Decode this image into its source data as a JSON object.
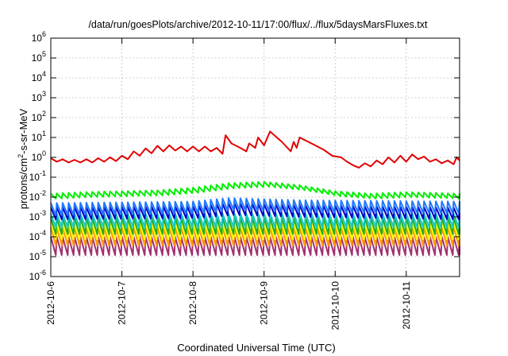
{
  "chart_data": {
    "type": "line",
    "title": "/data/run/goesPlots/archive/2012-10-11/17:00/flux/../flux/5daysMarsFluxes.txt",
    "xlabel": "Coordinated Universal Time (UTC)",
    "ylabel": "protons/cm²-s-sr-MeV",
    "ylabel_parts": {
      "pre": "protons/cm",
      "sup": "2",
      "post": "-s-sr-MeV"
    },
    "x_scale": "time",
    "y_scale": "log",
    "xlim": [
      "2012-10-06T00:00",
      "2012-10-11T18:00"
    ],
    "ylim": [
      1e-06,
      1000000.0
    ],
    "grid": true,
    "x_ticks": [
      "2012-10-6",
      "2012-10-7",
      "2012-10-8",
      "2012-10-9",
      "2012-10-10",
      "2012-10-11"
    ],
    "y_ticks": [
      {
        "base": "10",
        "exp": "-6",
        "value": 1e-06
      },
      {
        "base": "10",
        "exp": "-5",
        "value": 1e-05
      },
      {
        "base": "10",
        "exp": "-4",
        "value": 0.0001
      },
      {
        "base": "10",
        "exp": "-3",
        "value": 0.001
      },
      {
        "base": "10",
        "exp": "-2",
        "value": 0.01
      },
      {
        "base": "10",
        "exp": "-1",
        "value": 0.1
      },
      {
        "base": "10",
        "exp": "0",
        "value": 1
      },
      {
        "base": "10",
        "exp": "1",
        "value": 10
      },
      {
        "base": "10",
        "exp": "2",
        "value": 100
      },
      {
        "base": "10",
        "exp": "3",
        "value": 1000
      },
      {
        "base": "10",
        "exp": "4",
        "value": 10000
      },
      {
        "base": "10",
        "exp": "5",
        "value": 100000
      },
      {
        "base": "10",
        "exp": "6",
        "value": 1000000
      }
    ],
    "series": [
      {
        "color": "#e00000",
        "points": [
          [
            "2012-10-06T00:00",
            0.9
          ],
          [
            "2012-10-06T02:00",
            0.6
          ],
          [
            "2012-10-06T04:00",
            0.8
          ],
          [
            "2012-10-06T06:00",
            0.55
          ],
          [
            "2012-10-06T08:00",
            0.75
          ],
          [
            "2012-10-06T10:00",
            0.55
          ],
          [
            "2012-10-06T12:00",
            0.8
          ],
          [
            "2012-10-06T14:00",
            0.55
          ],
          [
            "2012-10-06T16:00",
            0.9
          ],
          [
            "2012-10-06T18:00",
            0.6
          ],
          [
            "2012-10-06T20:00",
            1.0
          ],
          [
            "2012-10-06T22:00",
            0.65
          ],
          [
            "2012-10-07T00:00",
            1.2
          ],
          [
            "2012-10-07T02:00",
            0.8
          ],
          [
            "2012-10-07T04:00",
            2.0
          ],
          [
            "2012-10-07T06:00",
            1.2
          ],
          [
            "2012-10-07T08:00",
            2.8
          ],
          [
            "2012-10-07T10:00",
            1.6
          ],
          [
            "2012-10-07T12:00",
            3.8
          ],
          [
            "2012-10-07T14:00",
            2.0
          ],
          [
            "2012-10-07T16:00",
            4.0
          ],
          [
            "2012-10-07T18:00",
            2.2
          ],
          [
            "2012-10-07T20:00",
            3.5
          ],
          [
            "2012-10-07T22:00",
            2.0
          ],
          [
            "2012-10-08T00:00",
            3.5
          ],
          [
            "2012-10-08T02:00",
            2.0
          ],
          [
            "2012-10-08T04:00",
            3.5
          ],
          [
            "2012-10-08T06:00",
            2.0
          ],
          [
            "2012-10-08T08:00",
            3.0
          ],
          [
            "2012-10-08T10:00",
            1.5
          ],
          [
            "2012-10-08T11:00",
            13.0
          ],
          [
            "2012-10-08T13:00",
            5.0
          ],
          [
            "2012-10-08T16:00",
            3.0
          ],
          [
            "2012-10-08T18:00",
            2.0
          ],
          [
            "2012-10-08T19:00",
            5.0
          ],
          [
            "2012-10-08T21:00",
            3.0
          ],
          [
            "2012-10-08T22:00",
            10.0
          ],
          [
            "2012-10-09T00:00",
            4.0
          ],
          [
            "2012-10-09T02:00",
            20.0
          ],
          [
            "2012-10-09T06:00",
            6.0
          ],
          [
            "2012-10-09T09:00",
            2.0
          ],
          [
            "2012-10-09T10:00",
            6.0
          ],
          [
            "2012-10-09T11:00",
            3.0
          ],
          [
            "2012-10-09T12:00",
            10.0
          ],
          [
            "2012-10-09T16:00",
            5.0
          ],
          [
            "2012-10-09T20:00",
            2.5
          ],
          [
            "2012-10-09T23:00",
            1.2
          ],
          [
            "2012-10-10T02:00",
            1.0
          ],
          [
            "2012-10-10T04:00",
            0.6
          ],
          [
            "2012-10-10T06:00",
            0.4
          ],
          [
            "2012-10-10T08:00",
            0.3
          ],
          [
            "2012-10-10T10:00",
            0.5
          ],
          [
            "2012-10-10T12:00",
            0.35
          ],
          [
            "2012-10-10T14:00",
            0.7
          ],
          [
            "2012-10-10T16:00",
            0.45
          ],
          [
            "2012-10-10T18:00",
            1.0
          ],
          [
            "2012-10-10T20:00",
            0.55
          ],
          [
            "2012-10-10T22:00",
            1.2
          ],
          [
            "2012-10-11T00:00",
            0.6
          ],
          [
            "2012-10-11T02:00",
            1.4
          ],
          [
            "2012-10-11T04:00",
            0.8
          ],
          [
            "2012-10-11T06:00",
            1.1
          ],
          [
            "2012-10-11T08:00",
            0.6
          ],
          [
            "2012-10-11T10:00",
            0.8
          ],
          [
            "2012-10-11T12:00",
            0.5
          ],
          [
            "2012-10-11T14:00",
            0.7
          ],
          [
            "2012-10-11T16:00",
            0.45
          ],
          [
            "2012-10-11T17:00",
            1.0
          ],
          [
            "2012-10-11T18:00",
            0.7
          ]
        ]
      },
      {
        "color": "#00ee00",
        "period_hours": 2,
        "segments": [
          [
            "2012-10-06T00:00",
            0.015
          ],
          [
            "2012-10-06T12:00",
            0.018
          ],
          [
            "2012-10-07T00:00",
            0.02
          ],
          [
            "2012-10-07T12:00",
            0.022
          ],
          [
            "2012-10-08T00:00",
            0.03
          ],
          [
            "2012-10-08T12:00",
            0.05
          ],
          [
            "2012-10-09T00:00",
            0.06
          ],
          [
            "2012-10-09T12:00",
            0.04
          ],
          [
            "2012-10-10T00:00",
            0.02
          ],
          [
            "2012-10-10T12:00",
            0.015
          ],
          [
            "2012-10-11T00:00",
            0.018
          ],
          [
            "2012-10-11T18:00",
            0.015
          ]
        ],
        "trough_ratio": 0.55
      },
      {
        "color": "#1e78ff",
        "period_hours": 2,
        "segments": [
          [
            "2012-10-06T00:00",
            0.005
          ],
          [
            "2012-10-08T00:00",
            0.006
          ],
          [
            "2012-10-08T12:00",
            0.009
          ],
          [
            "2012-10-09T12:00",
            0.007
          ],
          [
            "2012-10-11T18:00",
            0.006
          ]
        ],
        "trough_ratio": 0.25
      },
      {
        "color": "#0000c8",
        "period_hours": 2,
        "segments": [
          [
            "2012-10-06T00:00",
            0.003
          ],
          [
            "2012-10-08T00:00",
            0.0035
          ],
          [
            "2012-10-08T12:00",
            0.005
          ],
          [
            "2012-10-09T12:00",
            0.004
          ],
          [
            "2012-10-11T18:00",
            0.003
          ]
        ],
        "trough_ratio": 0.25
      },
      {
        "color": "#18c8c8",
        "period_hours": 2,
        "segments": [
          [
            "2012-10-06T00:00",
            0.0015
          ],
          [
            "2012-10-11T18:00",
            0.0015
          ]
        ],
        "trough_ratio": 0.2
      },
      {
        "color": "#22aa22",
        "period_hours": 2,
        "segments": [
          [
            "2012-10-06T00:00",
            0.0009
          ],
          [
            "2012-10-11T18:00",
            0.0009
          ]
        ],
        "trough_ratio": 0.15
      },
      {
        "color": "#ffff00",
        "period_hours": 2,
        "segments": [
          [
            "2012-10-06T00:00",
            0.0005
          ],
          [
            "2012-10-11T18:00",
            0.0005
          ]
        ],
        "trough_ratio": 0.15
      },
      {
        "color": "#ff9900",
        "period_hours": 2,
        "segments": [
          [
            "2012-10-06T00:00",
            0.0003
          ],
          [
            "2012-10-11T18:00",
            0.0003
          ]
        ],
        "trough_ratio": 0.12
      },
      {
        "color": "#a03070",
        "period_hours": 2,
        "segments": [
          [
            "2012-10-06T00:00",
            0.0001
          ],
          [
            "2012-10-11T18:00",
            0.0001
          ]
        ],
        "trough_ratio": 0.12
      }
    ]
  }
}
